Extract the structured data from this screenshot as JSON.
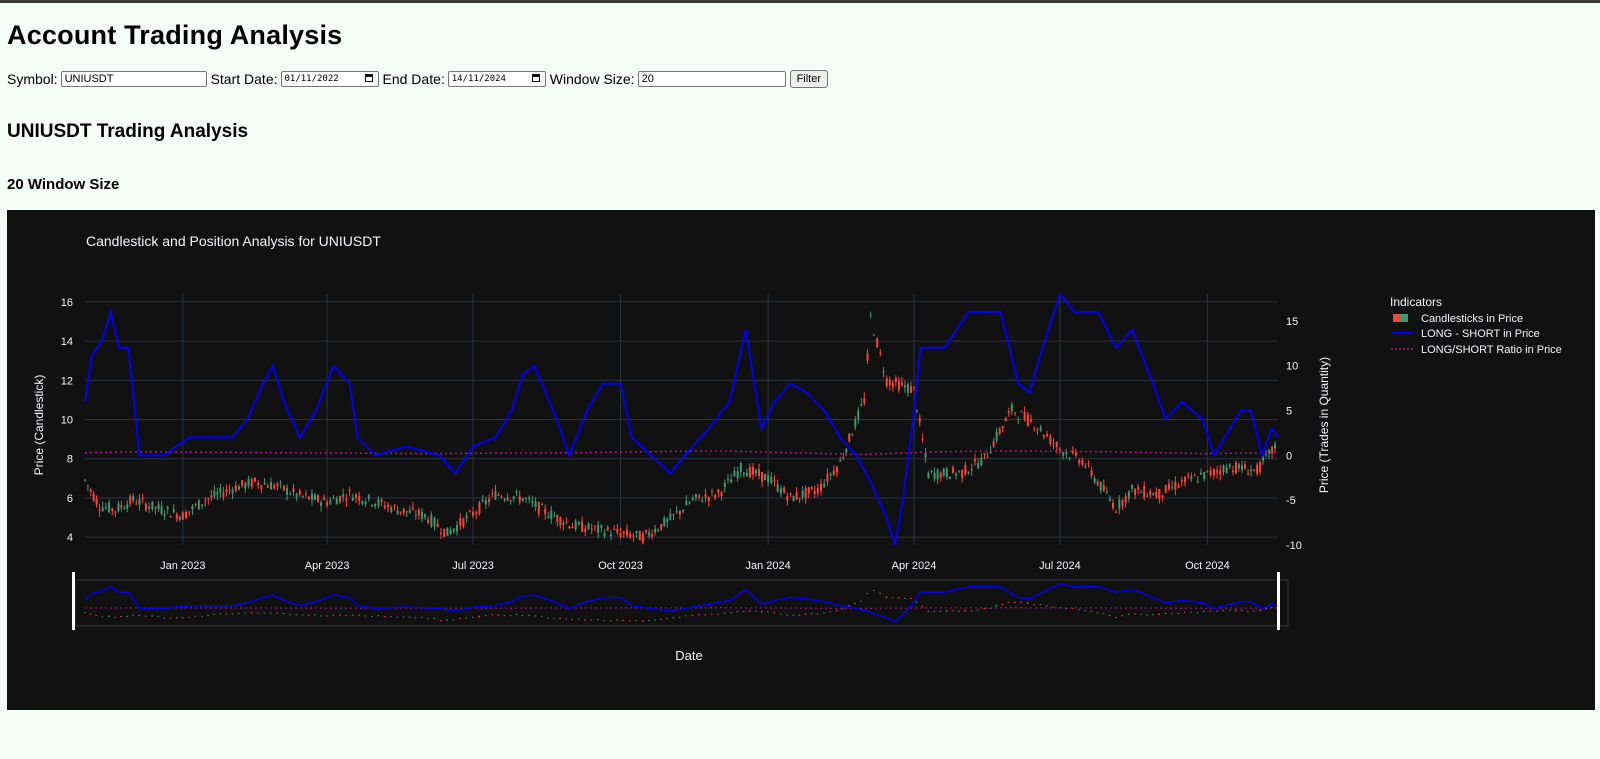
{
  "page": {
    "title": "Account Trading Analysis",
    "symbol_heading": "UNIUSDT Trading Analysis",
    "window_heading": "20 Window Size"
  },
  "filters": {
    "symbol_label": "Symbol:",
    "symbol_value": "UNIUSDT",
    "start_label": "Start Date:",
    "start_value": "01/11/2022",
    "end_label": "End Date:",
    "end_value": "14/11/2024",
    "window_label": "Window Size:",
    "window_value": "20",
    "filter_button": "Filter"
  },
  "colors": {
    "page_bg": "#f5fdf8",
    "plot_bg": "#111111",
    "long_short": "#0000ff",
    "ratio": "#b0148c",
    "up": "#3d9970",
    "down": "#ff4136"
  },
  "chart_data": {
    "type": "candlestick",
    "title": "Candlestick and Position Analysis for UNIUSDT",
    "xlabel": "Date",
    "ylabel_left": "Price (Candlestick)",
    "ylabel_right": "Price (Trades in Quantity)",
    "x_range": [
      "2022-11-01",
      "2024-11-14"
    ],
    "ylim_left": [
      3.6,
      16.4
    ],
    "ylim_right": [
      -10,
      18
    ],
    "x_ticks": [
      "Jan 2023",
      "Apr 2023",
      "Jul 2023",
      "Oct 2023",
      "Jan 2024",
      "Apr 2024",
      "Jul 2024",
      "Oct 2024"
    ],
    "y_ticks_left": [
      4,
      6,
      8,
      10,
      12,
      14,
      16
    ],
    "y_ticks_right": [
      -10,
      -5,
      0,
      5,
      10,
      15
    ],
    "grid": true,
    "legend": {
      "title": "Indicators",
      "placement": "right",
      "items": [
        "Candlesticks in Price",
        "LONG - SHORT in Price",
        "LONG/SHORT Ratio in Price"
      ]
    },
    "range_slider": true,
    "price_close": [
      [
        "2022-11-01",
        6.9
      ],
      [
        "2022-11-10",
        5.6
      ],
      [
        "2022-11-20",
        5.4
      ],
      [
        "2022-12-01",
        5.9
      ],
      [
        "2022-12-15",
        5.5
      ],
      [
        "2023-01-01",
        5.1
      ],
      [
        "2023-01-15",
        5.9
      ],
      [
        "2023-02-01",
        6.5
      ],
      [
        "2023-02-15",
        6.8
      ],
      [
        "2023-03-01",
        6.6
      ],
      [
        "2023-03-15",
        6.1
      ],
      [
        "2023-04-01",
        5.8
      ],
      [
        "2023-04-15",
        6.2
      ],
      [
        "2023-05-01",
        5.8
      ],
      [
        "2023-05-15",
        5.4
      ],
      [
        "2023-06-01",
        5.1
      ],
      [
        "2023-06-15",
        4.2
      ],
      [
        "2023-07-01",
        5.2
      ],
      [
        "2023-07-15",
        6.2
      ],
      [
        "2023-08-01",
        6.0
      ],
      [
        "2023-08-15",
        5.3
      ],
      [
        "2023-09-01",
        4.6
      ],
      [
        "2023-09-15",
        4.4
      ],
      [
        "2023-10-01",
        4.2
      ],
      [
        "2023-10-15",
        4.0
      ],
      [
        "2023-11-01",
        4.9
      ],
      [
        "2023-11-15",
        5.9
      ],
      [
        "2023-12-01",
        6.2
      ],
      [
        "2023-12-15",
        7.5
      ],
      [
        "2024-01-01",
        7.0
      ],
      [
        "2024-01-15",
        6.0
      ],
      [
        "2024-02-01",
        6.4
      ],
      [
        "2024-02-15",
        7.8
      ],
      [
        "2024-03-01",
        11.0
      ],
      [
        "2024-03-05",
        15.2
      ],
      [
        "2024-03-15",
        12.0
      ],
      [
        "2024-04-01",
        11.5
      ],
      [
        "2024-04-10",
        7.2
      ],
      [
        "2024-05-01",
        7.3
      ],
      [
        "2024-05-15",
        8.0
      ],
      [
        "2024-06-01",
        10.5
      ],
      [
        "2024-06-15",
        9.8
      ],
      [
        "2024-07-01",
        8.5
      ],
      [
        "2024-07-15",
        7.9
      ],
      [
        "2024-08-05",
        5.5
      ],
      [
        "2024-08-15",
        6.4
      ],
      [
        "2024-09-01",
        6.2
      ],
      [
        "2024-09-15",
        6.8
      ],
      [
        "2024-10-01",
        7.2
      ],
      [
        "2024-10-15",
        7.6
      ],
      [
        "2024-11-01",
        7.4
      ],
      [
        "2024-11-14",
        8.8
      ]
    ],
    "long_minus_short": [
      [
        "2022-11-01",
        6
      ],
      [
        "2022-11-05",
        11
      ],
      [
        "2022-11-12",
        13
      ],
      [
        "2022-11-17",
        16
      ],
      [
        "2022-11-22",
        12
      ],
      [
        "2022-11-28",
        12
      ],
      [
        "2022-12-05",
        0
      ],
      [
        "2022-12-10",
        0
      ],
      [
        "2022-12-20",
        0
      ],
      [
        "2023-01-05",
        2
      ],
      [
        "2023-01-20",
        2
      ],
      [
        "2023-02-01",
        2
      ],
      [
        "2023-02-10",
        4
      ],
      [
        "2023-02-20",
        8
      ],
      [
        "2023-02-26",
        10
      ],
      [
        "2023-03-05",
        6
      ],
      [
        "2023-03-15",
        2
      ],
      [
        "2023-03-25",
        5
      ],
      [
        "2023-04-05",
        10
      ],
      [
        "2023-04-15",
        8
      ],
      [
        "2023-04-20",
        2
      ],
      [
        "2023-05-01",
        0
      ],
      [
        "2023-05-20",
        1
      ],
      [
        "2023-06-10",
        0
      ],
      [
        "2023-06-20",
        -2
      ],
      [
        "2023-07-01",
        1
      ],
      [
        "2023-07-15",
        2
      ],
      [
        "2023-07-25",
        5
      ],
      [
        "2023-08-01",
        9
      ],
      [
        "2023-08-08",
        10
      ],
      [
        "2023-08-20",
        5
      ],
      [
        "2023-08-30",
        0
      ],
      [
        "2023-09-10",
        5
      ],
      [
        "2023-09-20",
        8
      ],
      [
        "2023-10-01",
        8
      ],
      [
        "2023-10-08",
        2
      ],
      [
        "2023-10-20",
        0
      ],
      [
        "2023-11-01",
        -2
      ],
      [
        "2023-11-10",
        0
      ],
      [
        "2023-11-25",
        3
      ],
      [
        "2023-12-08",
        6
      ],
      [
        "2023-12-18",
        14
      ],
      [
        "2023-12-28",
        3
      ],
      [
        "2024-01-05",
        6
      ],
      [
        "2024-01-15",
        8
      ],
      [
        "2024-01-25",
        7
      ],
      [
        "2024-02-05",
        5
      ],
      [
        "2024-02-15",
        2
      ],
      [
        "2024-02-25",
        0
      ],
      [
        "2024-03-05",
        -3
      ],
      [
        "2024-03-15",
        -7
      ],
      [
        "2024-03-20",
        -10
      ],
      [
        "2024-03-25",
        -5
      ],
      [
        "2024-04-01",
        5
      ],
      [
        "2024-04-05",
        12
      ],
      [
        "2024-04-20",
        12
      ],
      [
        "2024-05-05",
        16
      ],
      [
        "2024-05-25",
        16
      ],
      [
        "2024-06-05",
        8
      ],
      [
        "2024-06-12",
        7
      ],
      [
        "2024-06-20",
        12
      ],
      [
        "2024-07-01",
        18
      ],
      [
        "2024-07-10",
        16
      ],
      [
        "2024-07-25",
        16
      ],
      [
        "2024-08-05",
        12
      ],
      [
        "2024-08-15",
        14
      ],
      [
        "2024-08-28",
        8
      ],
      [
        "2024-09-05",
        4
      ],
      [
        "2024-09-15",
        6
      ],
      [
        "2024-09-28",
        4
      ],
      [
        "2024-10-05",
        0
      ],
      [
        "2024-10-15",
        3
      ],
      [
        "2024-10-22",
        5
      ],
      [
        "2024-10-28",
        5
      ],
      [
        "2024-11-04",
        0
      ],
      [
        "2024-11-10",
        3
      ],
      [
        "2024-11-14",
        2
      ]
    ],
    "long_short_ratio": [
      [
        "2022-11-01",
        0.3
      ],
      [
        "2022-12-01",
        0.4
      ],
      [
        "2023-03-01",
        0.3
      ],
      [
        "2023-06-01",
        0.2
      ],
      [
        "2023-09-01",
        0.3
      ],
      [
        "2023-12-01",
        0.5
      ],
      [
        "2024-03-01",
        0.1
      ],
      [
        "2024-04-15",
        0.4
      ],
      [
        "2024-06-01",
        0.5
      ],
      [
        "2024-08-01",
        0.4
      ],
      [
        "2024-10-01",
        0.2
      ],
      [
        "2024-11-14",
        0.3
      ]
    ]
  }
}
